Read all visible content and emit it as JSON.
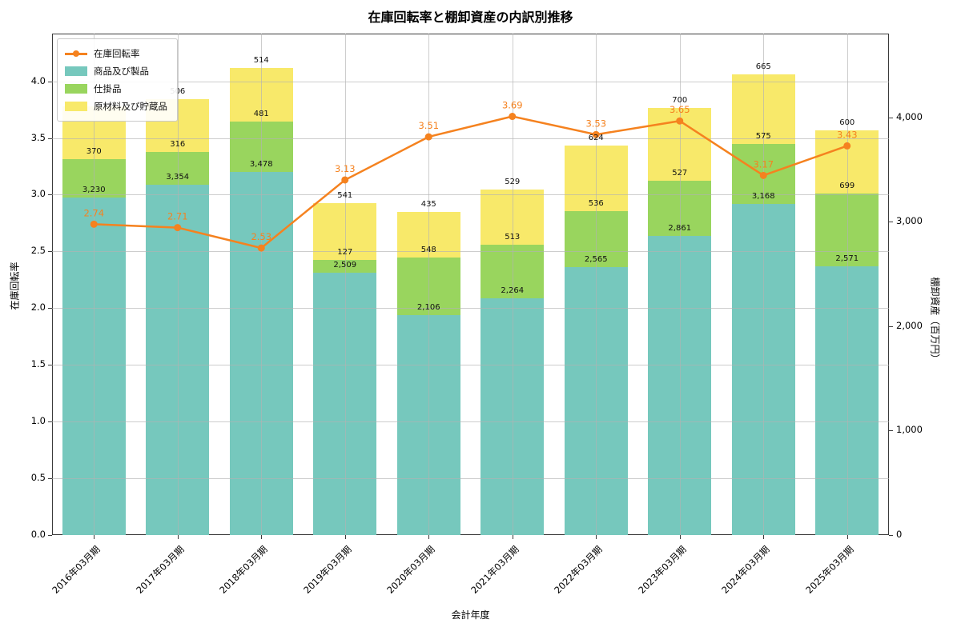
{
  "title": "在庫回転率と棚卸資産の内訳別推移",
  "x_axis_label": "会計年度",
  "y_axis_left_label": "在庫回転率",
  "y_axis_right_label": "棚卸資産（百万円）",
  "legend": {
    "items": [
      {
        "label": "在庫回転率",
        "type": "line",
        "color": "#f5821f"
      },
      {
        "label": "商品及び製品",
        "type": "patch",
        "color": "#76c8bd"
      },
      {
        "label": "仕掛品",
        "type": "patch",
        "color": "#99d55e"
      },
      {
        "label": "原材料及び貯蔵品",
        "type": "patch",
        "color": "#f8e96a"
      }
    ]
  },
  "chart_data": {
    "type": "bar",
    "stacked": true,
    "grid": true,
    "legend_position": "upper left",
    "categories": [
      "2016年03月期",
      "2017年03月期",
      "2018年03月期",
      "2019年03月期",
      "2020年03月期",
      "2021年03月期",
      "2022年03月期",
      "2023年03月期",
      "2024年03月期",
      "2025年03月期"
    ],
    "series": [
      {
        "name": "商品及び製品",
        "color": "#76c8bd",
        "values": [
          3230,
          3354,
          3478,
          2509,
          2106,
          2264,
          2565,
          2861,
          3168,
          2571
        ],
        "label_visible": [
          true,
          true,
          true,
          true,
          true,
          true,
          true,
          true,
          true,
          true
        ]
      },
      {
        "name": "仕掛品",
        "color": "#99d55e",
        "values": [
          370,
          316,
          481,
          127,
          548,
          513,
          536,
          527,
          575,
          699
        ],
        "label_visible": [
          true,
          true,
          true,
          true,
          true,
          true,
          true,
          true,
          true,
          true
        ]
      },
      {
        "name": "原材料及び貯蔵品",
        "color": "#f8e96a",
        "values": [
          500,
          506,
          514,
          541,
          435,
          529,
          624,
          700,
          665,
          600
        ],
        "label_visible": [
          false,
          true,
          true,
          true,
          true,
          true,
          true,
          true,
          true,
          true
        ]
      }
    ],
    "line": {
      "name": "在庫回転率",
      "color": "#f5821f",
      "values": [
        2.74,
        2.71,
        2.53,
        3.13,
        3.51,
        3.69,
        3.53,
        3.65,
        3.17,
        3.43
      ]
    },
    "left_axis": {
      "label": "在庫回転率",
      "ticks": [
        0.0,
        0.5,
        1.0,
        1.5,
        2.0,
        2.5,
        3.0,
        3.5,
        4.0
      ],
      "max": 4.42
    },
    "right_axis": {
      "label": "棚卸資産（百万円）",
      "ticks": [
        0,
        1000,
        2000,
        3000,
        4000
      ],
      "max": 4800
    }
  }
}
